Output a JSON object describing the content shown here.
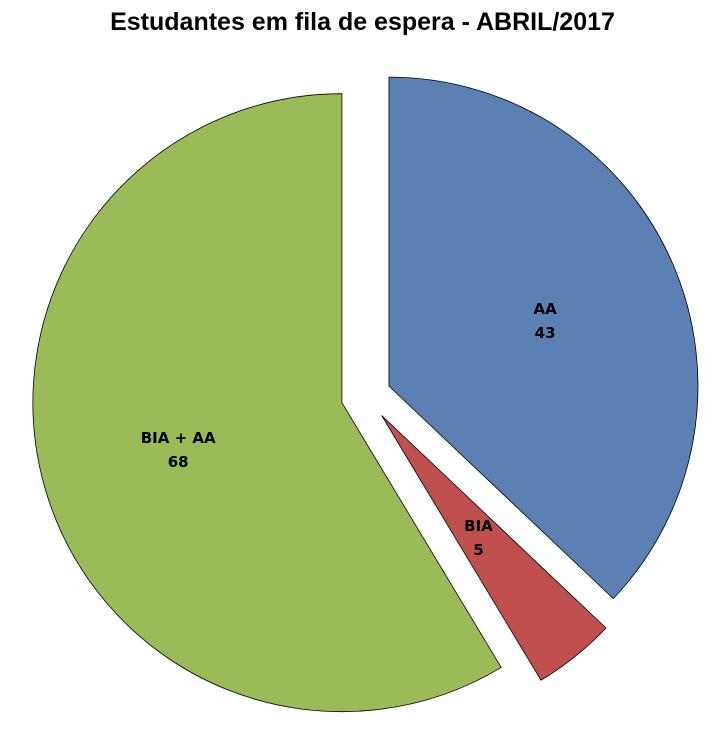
{
  "chart_data": {
    "type": "pie",
    "title": "Estudantes em fila de espera -  ABRIL/2017",
    "exploded": true,
    "start_angle": "12 o'clock, clockwise",
    "slices": [
      {
        "label": "AA",
        "value": 43,
        "color": "#5B80B4"
      },
      {
        "label": "BIA",
        "value": 5,
        "color": "#C0504D"
      },
      {
        "label": "BIA + AA",
        "value": 68,
        "color": "#9BBB59"
      }
    ],
    "data_labels": "category and value"
  }
}
